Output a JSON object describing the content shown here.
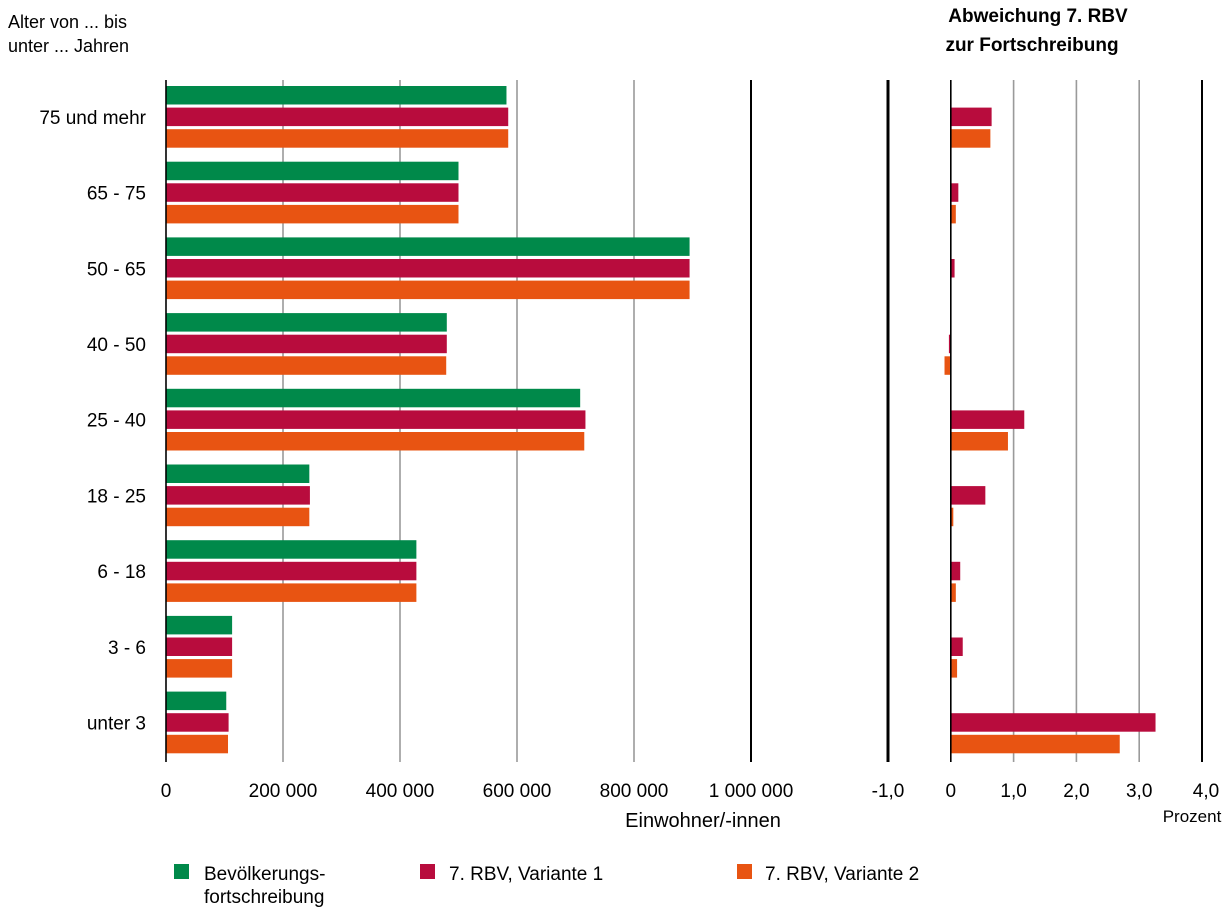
{
  "chart_data": [
    {
      "type": "bar",
      "orientation": "horizontal",
      "ylabel": "Alter von ... bis unter ... Jahren",
      "ylabel_lines": [
        "Alter von ... bis",
        "unter ... Jahren"
      ],
      "xlabel": "Einwohner/-innen",
      "categories": [
        "75 und mehr",
        "65 - 75",
        "50 - 65",
        "40 - 50",
        "25 - 40",
        "18 - 25",
        "6 - 18",
        "3 -   6",
        "unter 3"
      ],
      "xlim": [
        0,
        1000000
      ],
      "xticks": [
        0,
        200000,
        400000,
        600000,
        800000,
        1000000
      ],
      "xtick_labels": [
        "0",
        "200 000",
        "400 000",
        "600 000",
        "800 000",
        "1 000 000"
      ],
      "grid": true,
      "series": [
        {
          "name": "Bevölkerungs- fortschreibung",
          "color": "#00894a",
          "values": [
            582000,
            500000,
            895000,
            480000,
            708000,
            245000,
            428000,
            113000,
            103000
          ]
        },
        {
          "name": "7. RBV, Variante 1",
          "color": "#b80c3d",
          "values": [
            585000,
            500000,
            895000,
            480000,
            717000,
            246000,
            428000,
            113000,
            107000
          ]
        },
        {
          "name": "7. RBV, Variante 2",
          "color": "#e85412",
          "values": [
            585000,
            500000,
            895000,
            479000,
            715000,
            245000,
            428000,
            113000,
            106000
          ]
        }
      ]
    },
    {
      "type": "bar",
      "orientation": "horizontal",
      "title": "Abweichung 7. RBV zur Fortschreibung",
      "title_lines": [
        "Abweichung 7. RBV",
        "zur Fortschreibung"
      ],
      "xlabel": "Prozent",
      "categories": [
        "75 und mehr",
        "65 - 75",
        "50 - 65",
        "40 - 50",
        "25 - 40",
        "18 - 25",
        "6 - 18",
        "3 -   6",
        "unter 3"
      ],
      "xlim": [
        -1,
        4
      ],
      "xticks": [
        -1,
        0,
        1,
        2,
        3,
        4
      ],
      "xtick_labels": [
        "-1,0",
        "0",
        "1,0",
        "2,0",
        "3,0",
        "4,0"
      ],
      "grid": true,
      "series": [
        {
          "name": "7. RBV, Variante 1",
          "color": "#b80c3d",
          "values": [
            0.65,
            0.12,
            0.06,
            -0.03,
            1.17,
            0.55,
            0.15,
            0.19,
            3.26
          ]
        },
        {
          "name": "7. RBV, Variante 2",
          "color": "#e85412",
          "values": [
            0.63,
            0.08,
            0.0,
            -0.1,
            0.91,
            0.04,
            0.08,
            0.1,
            2.69
          ]
        }
      ]
    }
  ],
  "legend": {
    "placement": "bottom",
    "items": [
      {
        "label_lines": [
          "Bevölkerungs-",
          "fortschreibung"
        ],
        "color": "#00894a"
      },
      {
        "label_lines": [
          "7. RBV, Variante 1"
        ],
        "color": "#b80c3d"
      },
      {
        "label_lines": [
          "7. RBV, Variante 2"
        ],
        "color": "#e85412"
      }
    ]
  }
}
